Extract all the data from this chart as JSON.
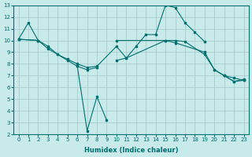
{
  "xlabel": "Humidex (Indice chaleur)",
  "bg_color": "#c8eaea",
  "line_color": "#007070",
  "grid_color": "#a0c8c8",
  "series": [
    {
      "x": [
        0,
        1,
        2,
        3,
        4,
        5,
        6,
        7,
        8,
        9,
        10,
        11,
        12,
        13,
        14,
        15,
        16,
        17,
        18,
        19,
        20,
        21,
        22,
        23
      ],
      "y": [
        10.1,
        11.5,
        10.0,
        9.5,
        8.8,
        8.3,
        7.8,
        7.5,
        7.7,
        null,
        8.3,
        8.5,
        9.5,
        10.5,
        10.5,
        13.0,
        12.8,
        11.5,
        10.7,
        9.9,
        null,
        7.0,
        6.5,
        6.7
      ]
    },
    {
      "x": [
        0,
        2,
        3,
        4,
        5,
        6,
        7,
        8,
        10,
        11,
        15,
        16,
        19,
        20,
        21,
        22,
        23
      ],
      "y": [
        10.1,
        10.0,
        9.3,
        8.8,
        8.4,
        8.0,
        7.7,
        7.8,
        9.5,
        8.5,
        10.0,
        9.8,
        9.0,
        7.5,
        7.0,
        6.5,
        6.6
      ]
    },
    {
      "x": [
        0,
        2,
        7,
        8,
        9,
        10,
        15,
        16,
        17,
        19,
        20,
        21,
        22,
        23
      ],
      "y": [
        10.1,
        10.0,
        null,
        null,
        null,
        10.0,
        10.0,
        10.0,
        9.9,
        8.8,
        7.5,
        7.0,
        6.8,
        6.6
      ]
    },
    {
      "x": [
        6,
        7,
        8,
        9
      ],
      "y": [
        7.8,
        2.3,
        5.2,
        3.2
      ]
    }
  ],
  "xlim": [
    -0.5,
    23.5
  ],
  "ylim": [
    2,
    13
  ],
  "yticks": [
    2,
    3,
    4,
    5,
    6,
    7,
    8,
    9,
    10,
    11,
    12,
    13
  ],
  "xticks": [
    0,
    1,
    2,
    3,
    4,
    5,
    6,
    7,
    8,
    9,
    10,
    11,
    12,
    13,
    14,
    15,
    16,
    17,
    18,
    19,
    20,
    21,
    22,
    23
  ]
}
